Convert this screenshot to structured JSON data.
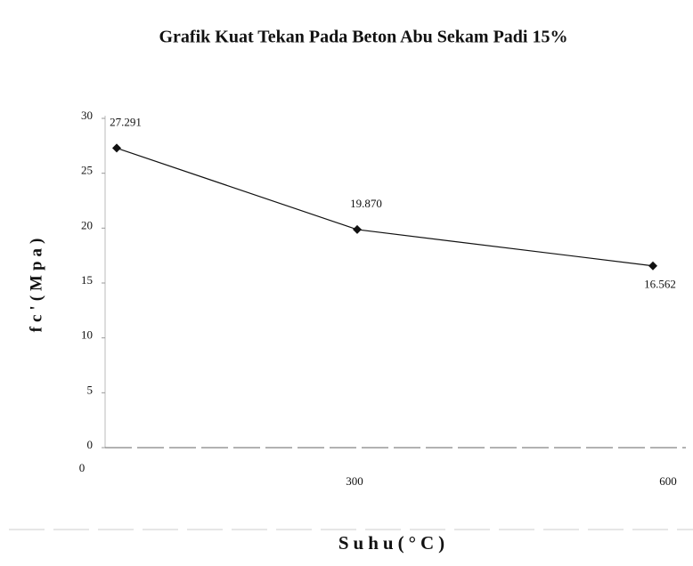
{
  "chart_data": {
    "type": "line",
    "title": "Grafik Kuat Tekan Pada Beton Abu Sekam Padi 15%",
    "x_label": "Suhu(°C)",
    "y_label": "fc'(Mpa)",
    "categories": [
      "0",
      "300",
      "600"
    ],
    "values": [
      27.291,
      19.87,
      16.562
    ],
    "value_labels": [
      "27.291",
      "19.870",
      "16.562"
    ],
    "color": "#111111",
    "ylim": [
      0,
      30
    ],
    "yticks": [
      0,
      5,
      10,
      15,
      20,
      25,
      30
    ]
  }
}
